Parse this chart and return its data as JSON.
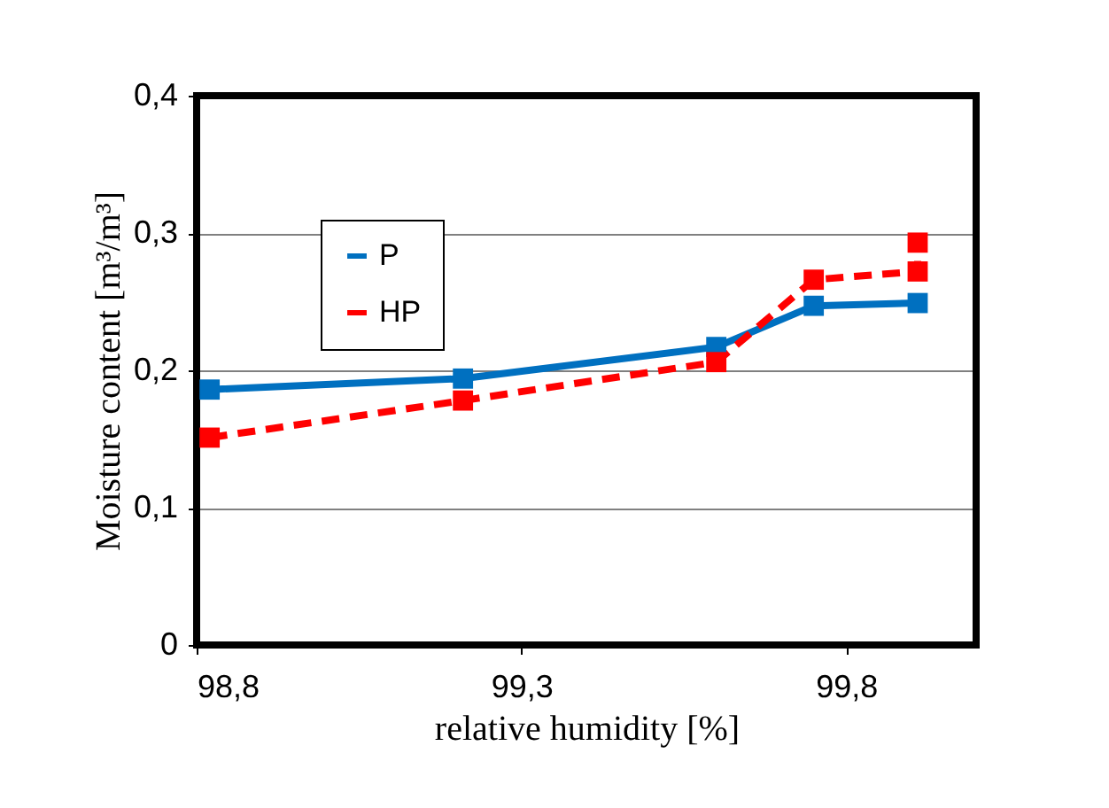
{
  "chart_data": {
    "type": "line",
    "xlabel": "relative humidity [%]",
    "ylabel": "Moisture content   [m³/m³]",
    "xlim": [
      98.8,
      100.0
    ],
    "xticks": [
      {
        "value": 98.8,
        "label": "98,8"
      },
      {
        "value": 99.3,
        "label": "99,3"
      },
      {
        "value": 99.8,
        "label": "99,8"
      }
    ],
    "ylim": [
      0,
      0.4
    ],
    "yticks": [
      0,
      {
        "value": 0.1,
        "label": "0,1"
      },
      {
        "value": 0.2,
        "label": "0,2"
      },
      {
        "value": 0.3,
        "label": "0,3"
      },
      {
        "value": 0.4,
        "label": "0,4"
      }
    ],
    "grid": "y",
    "legend": "top left",
    "marker": "square",
    "series": [
      {
        "name": "P",
        "color": "#0070c0",
        "line_style": "solid",
        "x": [
          98.82,
          99.21,
          99.6,
          99.75,
          99.91
        ],
        "values": [
          0.186,
          0.194,
          0.217,
          0.247,
          0.249
        ]
      },
      {
        "name": "HP",
        "color": "#ff0000",
        "line_style": "dashed",
        "x": [
          98.82,
          99.21,
          99.6,
          99.75,
          99.91,
          99.91
        ],
        "values": [
          0.151,
          0.178,
          0.206,
          0.266,
          0.272,
          0.293
        ]
      }
    ]
  }
}
